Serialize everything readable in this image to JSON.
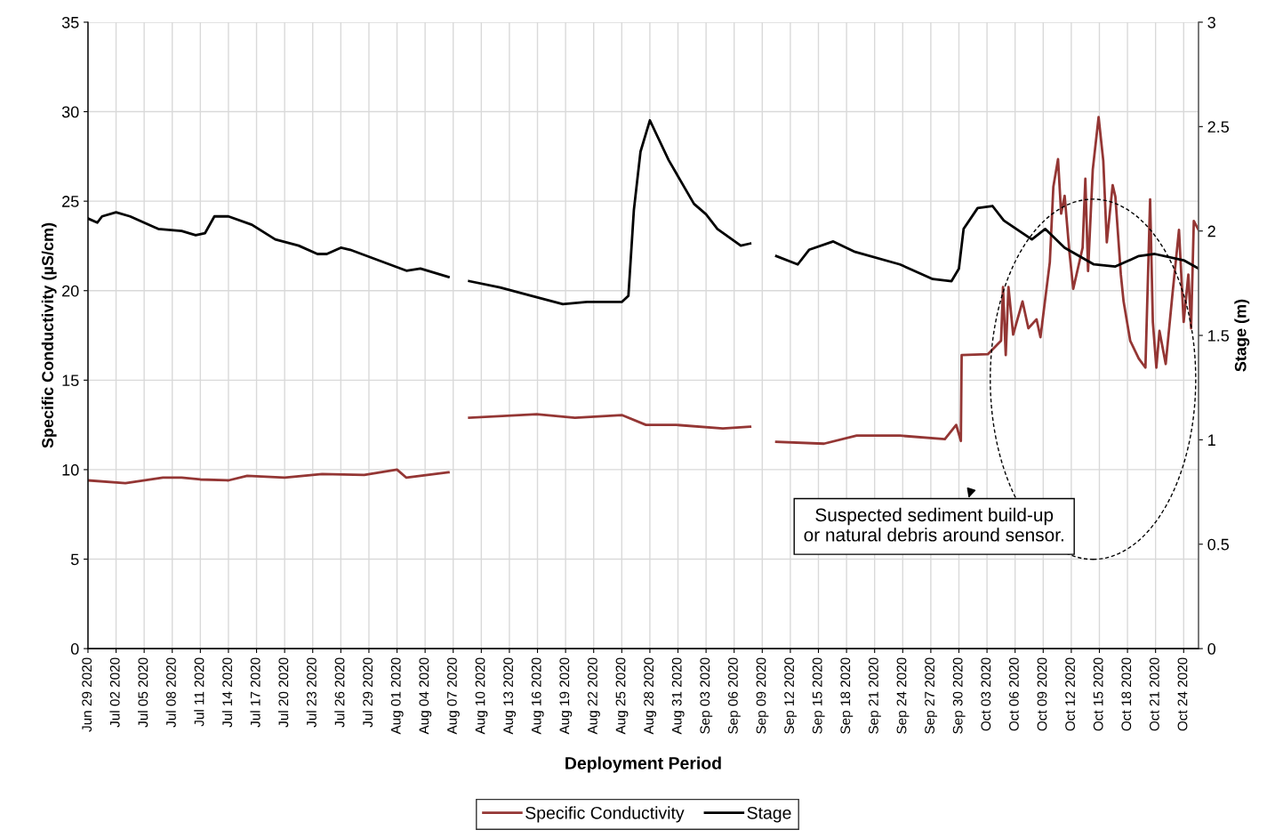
{
  "chart_data": {
    "type": "line",
    "xlabel": "Deployment Period",
    "ylabel": "Specific Conductivity (µS/cm)",
    "y2label": "Stage (m)",
    "xlim": [
      "2020-06-29",
      "2020-10-25T14:00"
    ],
    "xticks": [
      {
        "value": "2020-06-29",
        "label": "Jun 29 2020"
      },
      {
        "value": "2020-07-02",
        "label": "Jul 02 2020"
      },
      {
        "value": "2020-07-05",
        "label": "Jul 05 2020"
      },
      {
        "value": "2020-07-08",
        "label": "Jul 08 2020"
      },
      {
        "value": "2020-07-11",
        "label": "Jul 11 2020"
      },
      {
        "value": "2020-07-14",
        "label": "Jul 14 2020"
      },
      {
        "value": "2020-07-17",
        "label": "Jul 17 2020"
      },
      {
        "value": "2020-07-20",
        "label": "Jul 20 2020"
      },
      {
        "value": "2020-07-23",
        "label": "Jul 23 2020"
      },
      {
        "value": "2020-07-26",
        "label": "Jul 26 2020"
      },
      {
        "value": "2020-07-29",
        "label": "Jul 29 2020"
      },
      {
        "value": "2020-08-01",
        "label": "Aug 01 2020"
      },
      {
        "value": "2020-08-04",
        "label": "Aug 04 2020"
      },
      {
        "value": "2020-08-07",
        "label": "Aug 07 2020"
      },
      {
        "value": "2020-08-10",
        "label": "Aug 10 2020"
      },
      {
        "value": "2020-08-13",
        "label": "Aug 13 2020"
      },
      {
        "value": "2020-08-16",
        "label": "Aug 16 2020"
      },
      {
        "value": "2020-08-19",
        "label": "Aug 19 2020"
      },
      {
        "value": "2020-08-22",
        "label": "Aug 22 2020"
      },
      {
        "value": "2020-08-25",
        "label": "Aug 25 2020"
      },
      {
        "value": "2020-08-28",
        "label": "Aug 28 2020"
      },
      {
        "value": "2020-08-31",
        "label": "Aug 31 2020"
      },
      {
        "value": "2020-09-03",
        "label": "Sep 03 2020"
      },
      {
        "value": "2020-09-06",
        "label": "Sep 06 2020"
      },
      {
        "value": "2020-09-09",
        "label": "Sep 09 2020"
      },
      {
        "value": "2020-09-12",
        "label": "Sep 12 2020"
      },
      {
        "value": "2020-09-15",
        "label": "Sep 15 2020"
      },
      {
        "value": "2020-09-18",
        "label": "Sep 18 2020"
      },
      {
        "value": "2020-09-21",
        "label": "Sep 21 2020"
      },
      {
        "value": "2020-09-24",
        "label": "Sep 24 2020"
      },
      {
        "value": "2020-09-27",
        "label": "Sep 27 2020"
      },
      {
        "value": "2020-09-30",
        "label": "Sep 30 2020"
      },
      {
        "value": "2020-10-03",
        "label": "Oct 03 2020"
      },
      {
        "value": "2020-10-06",
        "label": "Oct 06 2020"
      },
      {
        "value": "2020-10-09",
        "label": "Oct 09 2020"
      },
      {
        "value": "2020-10-12",
        "label": "Oct 12 2020"
      },
      {
        "value": "2020-10-15",
        "label": "Oct 15 2020"
      },
      {
        "value": "2020-10-18",
        "label": "Oct 18 2020"
      },
      {
        "value": "2020-10-21",
        "label": "Oct 21 2020"
      },
      {
        "value": "2020-10-24",
        "label": "Oct 24 2020"
      }
    ],
    "ylim": [
      0,
      35
    ],
    "yticks": [
      0,
      5,
      10,
      15,
      20,
      25,
      30,
      35
    ],
    "y2lim": [
      0,
      3
    ],
    "y2ticks": [
      0,
      0.5,
      1,
      1.5,
      2,
      2.5,
      3
    ],
    "grid": true,
    "legend": "bottom",
    "marker": "none",
    "line_style": "solid",
    "annotations": [
      "Suspected sediment build-up\nor natural debris around sensor."
    ],
    "series": [
      {
        "name": "Specific Conductivity",
        "color": "#943634",
        "x": [
          "2020-06-29",
          "2020-07-03",
          "2020-07-07",
          "2020-07-09",
          "2020-07-11",
          "2020-07-14",
          "2020-07-16",
          "2020-07-20",
          "2020-07-24",
          "2020-07-28T12:00",
          "2020-08-01",
          "2020-08-02",
          "2020-08-06T12:00",
          "2020-08-07T12:00",
          "2020-08-08T17:00",
          "2020-08-15T22:00",
          "2020-08-20",
          "2020-08-25",
          "2020-08-27T14:00",
          "2020-08-30T19:00",
          "2020-09-04T19:00",
          "2020-09-07T17:00",
          "2020-09-09",
          "2020-09-10T12:00",
          "2020-09-15T14:00",
          "2020-09-19T02:00",
          "2020-09-23T17:00",
          "2020-09-28T12:00",
          "2020-09-29T17:00",
          "2020-09-30T05:00",
          "2020-09-30T07:00",
          "2020-10-03T02:00",
          "2020-10-04T12:00",
          "2020-10-04T17:00",
          "2020-10-05",
          "2020-10-05T07:00",
          "2020-10-05T19:00",
          "2020-10-06T19:00",
          "2020-10-07T10:00",
          "2020-10-08T07:00",
          "2020-10-08T17:00",
          "2020-10-09T17:00",
          "2020-10-10T02:00",
          "2020-10-10T14:00",
          "2020-10-10T22:00",
          "2020-10-11T07:00",
          "2020-10-11T19:00",
          "2020-10-12T05:00",
          "2020-10-13T05:00",
          "2020-10-13T12:00",
          "2020-10-13T19:00",
          "2020-10-14T07:00",
          "2020-10-14T22:00",
          "2020-10-15T10:00",
          "2020-10-15T19:00",
          "2020-10-16T10:00",
          "2020-10-16T17:00",
          "2020-10-17T07:00",
          "2020-10-17T14:00",
          "2020-10-18T07:00",
          "2020-10-19T05:00",
          "2020-10-19T22:00",
          "2020-10-20T10:00",
          "2020-10-20T17:00",
          "2020-10-21T02:00",
          "2020-10-21T10:00",
          "2020-10-22T02:00",
          "2020-10-22T19:00",
          "2020-10-23T12:00",
          "2020-10-24",
          "2020-10-24T12:00",
          "2020-10-24T19:00",
          "2020-10-25T02:00",
          "2020-10-25T14:00"
        ],
        "values": [
          9.4,
          9.25,
          9.55,
          9.55,
          9.45,
          9.4,
          9.65,
          9.55,
          9.75,
          9.7,
          10.0,
          9.55,
          9.85,
          null,
          12.9,
          13.1,
          12.9,
          13.05,
          12.5,
          12.5,
          12.3,
          12.4,
          null,
          11.55,
          11.45,
          11.9,
          11.9,
          11.7,
          12.5,
          11.6,
          16.4,
          16.45,
          17.2,
          20.2,
          16.4,
          20.2,
          17.55,
          19.4,
          17.9,
          18.4,
          17.4,
          21.6,
          25.8,
          27.35,
          24.3,
          25.3,
          22.2,
          20.1,
          22.4,
          26.25,
          21.1,
          26.75,
          29.7,
          27.25,
          22.7,
          25.9,
          25.25,
          20.9,
          19.4,
          17.2,
          16.2,
          15.7,
          25.1,
          18.25,
          15.7,
          17.75,
          15.9,
          19.75,
          23.4,
          18.25,
          20.9,
          17.9,
          23.9,
          23.4
        ]
      },
      {
        "name": "Stage",
        "color": "#000000",
        "axis": "y2",
        "x": [
          "2020-06-29",
          "2020-06-30",
          "2020-06-30T12:00",
          "2020-07-02",
          "2020-07-03T12:00",
          "2020-07-06T12:00",
          "2020-07-09",
          "2020-07-10T12:00",
          "2020-07-11T12:00",
          "2020-07-12T12:00",
          "2020-07-14",
          "2020-07-16T12:00",
          "2020-07-19",
          "2020-07-21T12:00",
          "2020-07-23T12:00",
          "2020-07-24T12:00",
          "2020-07-26",
          "2020-07-27",
          "2020-07-30",
          "2020-08-02",
          "2020-08-03T12:00",
          "2020-08-06T12:00",
          "2020-08-07T12:00",
          "2020-08-08T17:00",
          "2020-08-12",
          "2020-08-15T07:00",
          "2020-08-18T17:00",
          "2020-08-21T07:00",
          "2020-08-25",
          "2020-08-25T17:00",
          "2020-08-26T07:00",
          "2020-08-27",
          "2020-08-28",
          "2020-08-30",
          "2020-09-01T17:00",
          "2020-09-03",
          "2020-09-04T05:00",
          "2020-09-06T17:00",
          "2020-09-07T17:00",
          "2020-09-09",
          "2020-09-10T12:00",
          "2020-09-12T19:00",
          "2020-09-14",
          "2020-09-16T14:00",
          "2020-09-18T22:00",
          "2020-09-23T17:00",
          "2020-09-27T05:00",
          "2020-09-29T05:00",
          "2020-09-30",
          "2020-09-30T12:00",
          "2020-10-02",
          "2020-10-03T14:00",
          "2020-10-04T19:00",
          "2020-10-07T19:00",
          "2020-10-09T05:00",
          "2020-10-11T07:00",
          "2020-10-14T10:00",
          "2020-10-16T17:00",
          "2020-10-19T05:00",
          "2020-10-20T22:00",
          "2020-10-24",
          "2020-10-25T14:00"
        ],
        "values": [
          2.06,
          2.04,
          2.07,
          2.09,
          2.07,
          2.01,
          2.0,
          1.98,
          1.99,
          2.07,
          2.07,
          2.03,
          1.96,
          1.93,
          1.89,
          1.89,
          1.92,
          1.91,
          1.86,
          1.81,
          1.82,
          1.78,
          null,
          1.76,
          1.73,
          1.69,
          1.65,
          1.66,
          1.66,
          1.69,
          2.1,
          2.38,
          2.53,
          2.34,
          2.13,
          2.08,
          2.01,
          1.93,
          1.94,
          null,
          1.88,
          1.84,
          1.91,
          1.95,
          1.9,
          1.84,
          1.77,
          1.76,
          1.82,
          2.01,
          2.11,
          2.12,
          2.05,
          1.96,
          2.01,
          1.92,
          1.84,
          1.83,
          1.88,
          1.89,
          1.86,
          1.82
        ]
      }
    ]
  }
}
